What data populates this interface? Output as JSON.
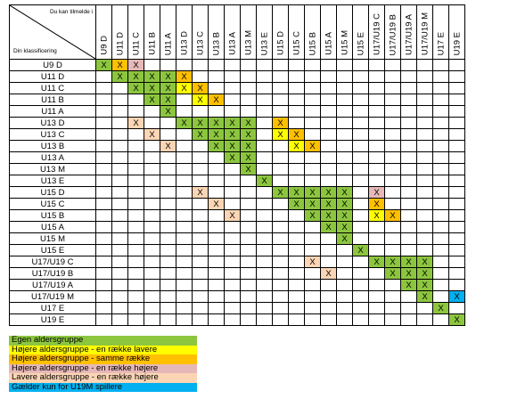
{
  "corner": {
    "top_label": "Du kan tilmelde i",
    "bottom_label": "Din klassificering"
  },
  "columns": [
    "U9 D",
    "U11 D",
    "U11 C",
    "U11 B",
    "U11 A",
    "U13 D",
    "U13 C",
    "U13 B",
    "U13 A",
    "U13 M",
    "U13 E",
    "U15 D",
    "U15 C",
    "U15 B",
    "U15 A",
    "U15 M",
    "U15 E",
    "U17/U19 C",
    "U17/U19 B",
    "U17/U19 A",
    "U17/U19 M",
    "U17 E",
    "U19 E"
  ],
  "rows": [
    {
      "label": "U9 D",
      "cells": {
        "0": "g",
        "1": "o",
        "2": "p"
      }
    },
    {
      "label": "U11 D",
      "cells": {
        "1": "g",
        "2": "g",
        "3": "g",
        "4": "g",
        "5": "o"
      }
    },
    {
      "label": "U11 C",
      "cells": {
        "2": "g",
        "3": "g",
        "4": "g",
        "5": "y",
        "6": "o"
      }
    },
    {
      "label": "U11 B",
      "cells": {
        "3": "g",
        "4": "g",
        "6": "y",
        "7": "o"
      }
    },
    {
      "label": "U11 A",
      "cells": {
        "4": "g"
      }
    },
    {
      "label": "U13 D",
      "cells": {
        "2": "s",
        "5": "g",
        "6": "g",
        "7": "g",
        "8": "g",
        "9": "g",
        "11": "o"
      }
    },
    {
      "label": "U13 C",
      "cells": {
        "3": "s",
        "6": "g",
        "7": "g",
        "8": "g",
        "9": "g",
        "11": "y",
        "12": "o"
      }
    },
    {
      "label": "U13 B",
      "cells": {
        "4": "s",
        "7": "g",
        "8": "g",
        "9": "g",
        "12": "y",
        "13": "o"
      }
    },
    {
      "label": "U13 A",
      "cells": {
        "8": "g",
        "9": "g"
      }
    },
    {
      "label": "U13 M",
      "cells": {
        "9": "g"
      }
    },
    {
      "label": "U13 E",
      "cells": {
        "10": "g"
      }
    },
    {
      "label": "U15 D",
      "cells": {
        "6": "s",
        "11": "g",
        "12": "g",
        "13": "g",
        "14": "g",
        "15": "g",
        "17": "p"
      }
    },
    {
      "label": "U15 C",
      "cells": {
        "7": "s",
        "12": "g",
        "13": "g",
        "14": "g",
        "15": "g",
        "17": "o"
      }
    },
    {
      "label": "U15 B",
      "cells": {
        "8": "s",
        "13": "g",
        "14": "g",
        "15": "g",
        "17": "y",
        "18": "o"
      }
    },
    {
      "label": "U15 A",
      "cells": {
        "14": "g",
        "15": "g"
      }
    },
    {
      "label": "U15 M",
      "cells": {
        "15": "g"
      }
    },
    {
      "label": "U15 E",
      "cells": {
        "16": "g"
      }
    },
    {
      "label": "U17/U19 C",
      "cells": {
        "13": "s",
        "17": "g",
        "18": "g",
        "19": "g",
        "20": "g"
      }
    },
    {
      "label": "U17/U19 B",
      "cells": {
        "14": "s",
        "18": "g",
        "19": "g",
        "20": "g"
      }
    },
    {
      "label": "U17/U19 A",
      "cells": {
        "19": "g",
        "20": "g"
      }
    },
    {
      "label": "U17/U19 M",
      "cells": {
        "20": "g",
        "22": "b"
      }
    },
    {
      "label": "U17 E",
      "cells": {
        "21": "g"
      }
    },
    {
      "label": "U19 E",
      "cells": {
        "22": "g"
      }
    }
  ],
  "mark": "X",
  "colors": {
    "g": "#8cc63f",
    "y": "#ffff00",
    "o": "#ffc000",
    "p": "#e6b8b7",
    "s": "#fcd5b4",
    "b": "#00b0f0"
  },
  "legend": [
    {
      "key": "g",
      "label": "Egen aldersgruppe"
    },
    {
      "key": "y",
      "label": "Højere aldersgruppe - en række lavere"
    },
    {
      "key": "o",
      "label": "Højere aldersgruppe - samme række"
    },
    {
      "key": "p",
      "label": "Højere aldersgruppe - en række højere"
    },
    {
      "key": "s",
      "label": "Lavere aldersgruppe - en række højere"
    },
    {
      "key": "b",
      "label": "Gælder kun for U19M spillere"
    }
  ]
}
